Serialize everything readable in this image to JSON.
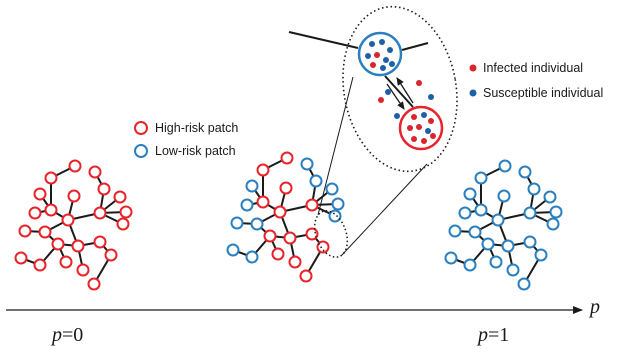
{
  "colors": {
    "high_risk": "#e8232a",
    "low_risk": "#2a7fbf",
    "edge": "#1a1a1a",
    "infected_dot": "#d9262c",
    "susceptible_dot": "#1f5fa8"
  },
  "legend_patch": {
    "high_risk_label": "High-risk patch",
    "low_risk_label": "Low-risk patch"
  },
  "legend_individual": {
    "infected_label": "Infected individual",
    "susceptible_label": "Susceptible individual"
  },
  "axis": {
    "variable": "p",
    "left_label_var": "p",
    "left_label_value": "=0",
    "right_label_var": "p",
    "right_label_value": "=1"
  },
  "networks": [
    {
      "name": "network-all-high-risk",
      "p": 0
    },
    {
      "name": "network-mixed",
      "p": 0.5
    },
    {
      "name": "network-all-low-risk",
      "p": 1
    }
  ]
}
